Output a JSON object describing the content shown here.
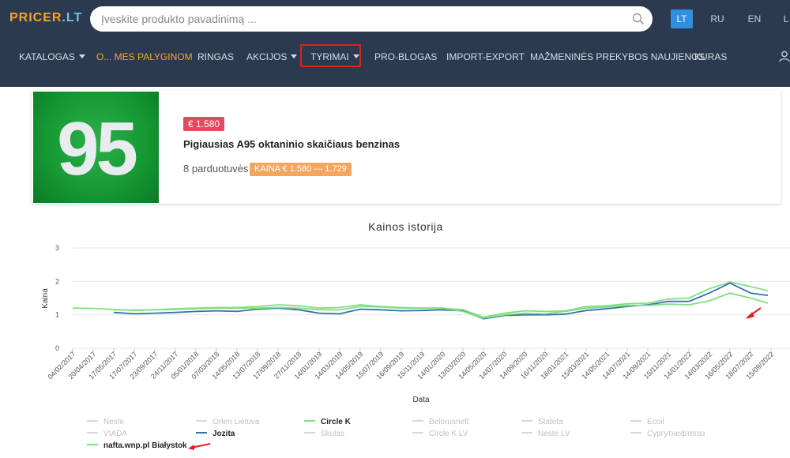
{
  "header": {
    "logo_main": "PRICER",
    "logo_tld": ".LT",
    "search_placeholder": "Įveskite produkto pavadinimą ...",
    "languages": [
      {
        "label": "LT",
        "active": true
      },
      {
        "label": "RU",
        "active": false
      },
      {
        "label": "EN",
        "active": false
      },
      {
        "label": "L",
        "active": false
      }
    ]
  },
  "nav": {
    "items": [
      {
        "label": "KATALOGAS",
        "caret": true
      },
      {
        "label": "O... MES PALYGINOM",
        "caret": false,
        "highlight_color": "#f5a623"
      },
      {
        "label": "RINGAS",
        "caret": false
      },
      {
        "label": "AKCIJOS",
        "caret": true
      },
      {
        "label": "TYRIMAI",
        "caret": true,
        "outlined": true
      },
      {
        "label": "PRO-BLOGAS",
        "caret": false
      },
      {
        "label": "IMPORT-EXPORT",
        "caret": false
      },
      {
        "label": "MAŽMENINĖS PREKYBOS NAUJIENOS",
        "caret": false
      },
      {
        "label": "KURAS",
        "caret": false
      }
    ]
  },
  "product": {
    "badge_number": "95",
    "price": "€ 1.580",
    "title": "Pigiausias A95 oktaninio skaičiaus benzinas",
    "stores": "8 parduotuvės",
    "price_range": "KAINA € 1.580 — 1.729"
  },
  "chart_data": {
    "type": "line",
    "title": "Kainos istorija",
    "xlabel": "Data",
    "ylabel": "Kaina",
    "ylim": [
      0,
      3
    ],
    "yticks": [
      "0",
      "1",
      "2",
      "3"
    ],
    "xticks": [
      "04/02/2017",
      "20/04/2017",
      "17/05/2017",
      "17/07/2017",
      "23/09/2017",
      "24/11/2017",
      "05/01/2018",
      "07/03/2018",
      "14/05/2018",
      "13/07/2018",
      "17/09/2018",
      "27/11/2018",
      "14/01/2019",
      "14/03/2019",
      "14/05/2019",
      "15/07/2019",
      "16/09/2019",
      "15/11/2019",
      "14/01/2020",
      "13/03/2020",
      "14/05/2020",
      "14/07/2020",
      "14/09/2020",
      "16/11/2020",
      "18/01/2021",
      "15/03/2021",
      "14/05/2021",
      "14/07/2021",
      "14/09/2021",
      "15/11/2021",
      "14/01/2022",
      "14/03/2022",
      "16/05/2022",
      "18/07/2022",
      "15/09/2022"
    ],
    "grid": true,
    "legend_position": "bottom",
    "series": [
      {
        "name": "Circle K",
        "color": "#7fe07f",
        "visible": true,
        "values": [
          1.2,
          1.19,
          1.16,
          1.13,
          1.15,
          1.18,
          1.2,
          1.22,
          1.22,
          1.25,
          1.3,
          1.27,
          1.2,
          1.22,
          1.3,
          1.25,
          1.22,
          1.2,
          1.2,
          1.15,
          0.93,
          1.05,
          1.12,
          1.1,
          1.12,
          1.25,
          1.27,
          1.33,
          1.35,
          1.47,
          1.5,
          1.78,
          1.98,
          1.85,
          1.72
        ]
      },
      {
        "name": "Jozita",
        "color": "#3570b0",
        "visible": true,
        "values": [
          null,
          null,
          1.07,
          1.03,
          1.05,
          1.07,
          1.1,
          1.12,
          1.1,
          1.17,
          1.2,
          1.15,
          1.05,
          1.03,
          1.17,
          1.15,
          1.12,
          1.13,
          1.15,
          1.12,
          0.88,
          0.98,
          1.0,
          1.0,
          1.02,
          1.13,
          1.18,
          1.25,
          1.3,
          1.4,
          1.4,
          1.65,
          1.95,
          1.65,
          1.58
        ]
      },
      {
        "name": "nafta.wnp.pl Białystok",
        "color": "#7fe07f",
        "visible": true,
        "values": [
          null,
          null,
          1.15,
          1.14,
          1.15,
          1.16,
          1.18,
          1.2,
          1.2,
          1.2,
          1.22,
          1.2,
          1.15,
          1.15,
          1.25,
          1.23,
          1.2,
          1.2,
          1.2,
          1.1,
          0.9,
          1.0,
          1.05,
          1.03,
          1.1,
          1.2,
          1.23,
          1.28,
          1.28,
          1.32,
          1.3,
          1.42,
          1.65,
          1.5,
          1.35
        ]
      }
    ],
    "legend": [
      {
        "name": "Neste",
        "visible": false,
        "color": "#d8d8d8"
      },
      {
        "name": "Orlen Lietuva",
        "visible": false,
        "color": "#d8d8d8"
      },
      {
        "name": "Circle K",
        "visible": true,
        "color": "#7fe07f"
      },
      {
        "name": "Belorusneft",
        "visible": false,
        "color": "#d8d8d8"
      },
      {
        "name": "Stateta",
        "visible": false,
        "color": "#d8d8d8"
      },
      {
        "name": "Ecoil",
        "visible": false,
        "color": "#d8d8d8"
      },
      {
        "name": "VIADA",
        "visible": false,
        "color": "#d8d8d8"
      },
      {
        "name": "Jozita",
        "visible": true,
        "color": "#3570b0"
      },
      {
        "name": "Skulas",
        "visible": false,
        "color": "#d8d8d8"
      },
      {
        "name": "Circle K LV",
        "visible": false,
        "color": "#d8d8d8"
      },
      {
        "name": "Neste LV",
        "visible": false,
        "color": "#d8d8d8"
      },
      {
        "name": "Сургутнефтегаз",
        "visible": false,
        "color": "#d8d8d8"
      },
      {
        "name": "nafta.wnp.pl Białystok",
        "visible": true,
        "color": "#7fe07f"
      }
    ]
  },
  "colors": {
    "header_bg": "#2b3a4f",
    "accent": "#f5a623",
    "annotation_red": "#e21d24"
  }
}
